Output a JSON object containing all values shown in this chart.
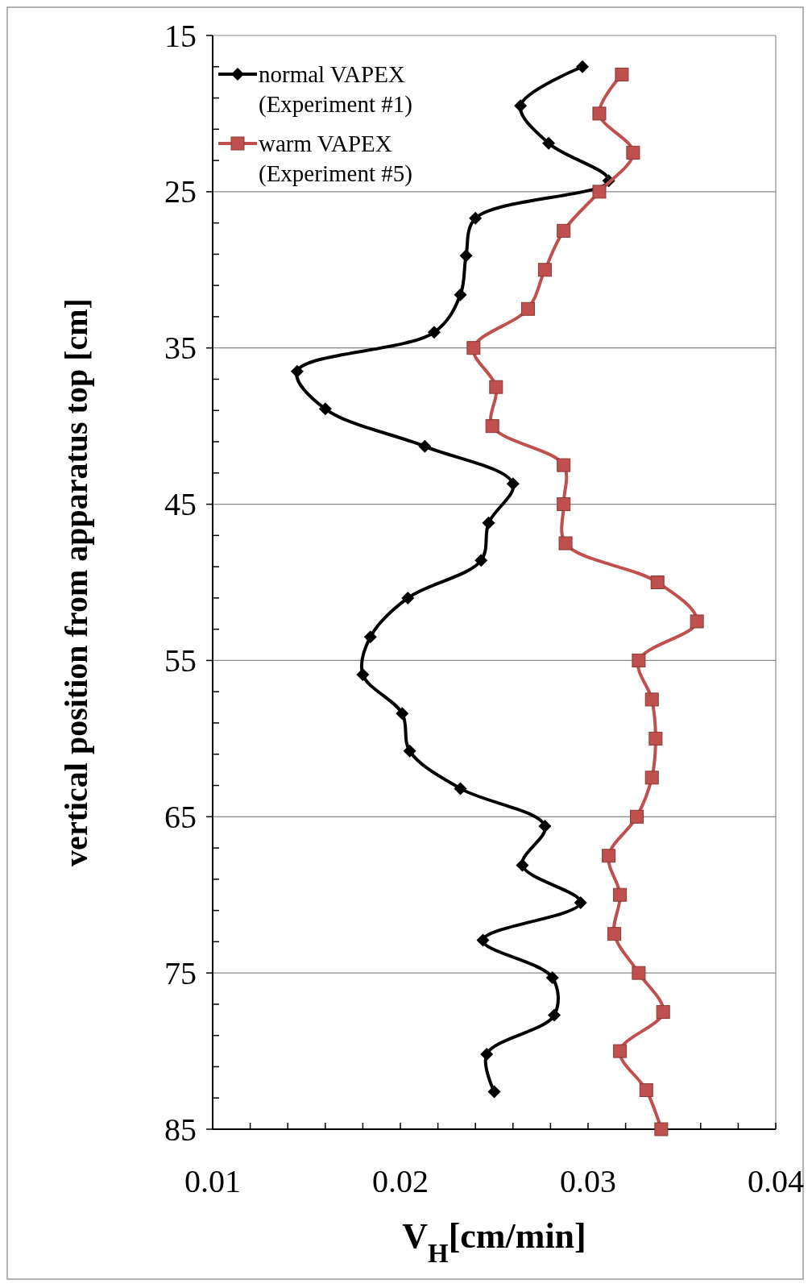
{
  "chart_data": {
    "type": "line",
    "xlabel": "V$_{H}$[cm/min]",
    "ylabel": "vertical position from apparatus top [cm]",
    "xlim": [
      0.01,
      0.04
    ],
    "xticks": [
      0.01,
      {
        "value": 0.012,
        "label": null
      },
      {
        "value": 0.014,
        "label": null
      },
      {
        "value": 0.016,
        "label": null
      },
      {
        "value": 0.018,
        "label": null
      },
      0.02,
      {
        "value": 0.022,
        "label": null
      },
      {
        "value": 0.024,
        "label": null
      },
      {
        "value": 0.026,
        "label": null
      },
      {
        "value": 0.028,
        "label": null
      },
      0.03,
      {
        "value": 0.032,
        "label": null
      },
      {
        "value": 0.034,
        "label": null
      },
      {
        "value": 0.036,
        "label": null
      },
      {
        "value": 0.038,
        "label": null
      },
      0.04
    ],
    "ylim": [
      85,
      15
    ],
    "yticks": [
      15,
      {
        "value": 17,
        "label": null
      },
      {
        "value": 19,
        "label": null
      },
      {
        "value": 21,
        "label": null
      },
      {
        "value": 23,
        "label": null
      },
      25,
      {
        "value": 27,
        "label": null
      },
      {
        "value": 29,
        "label": null
      },
      {
        "value": 31,
        "label": null
      },
      {
        "value": 33,
        "label": null
      },
      35,
      {
        "value": 37,
        "label": null
      },
      {
        "value": 39,
        "label": null
      },
      {
        "value": 41,
        "label": null
      },
      {
        "value": 43,
        "label": null
      },
      45,
      {
        "value": 47,
        "label": null
      },
      {
        "value": 49,
        "label": null
      },
      {
        "value": 51,
        "label": null
      },
      {
        "value": 53,
        "label": null
      },
      55,
      {
        "value": 57,
        "label": null
      },
      {
        "value": 59,
        "label": null
      },
      {
        "value": 61,
        "label": null
      },
      {
        "value": 63,
        "label": null
      },
      65,
      {
        "value": 67,
        "label": null
      },
      {
        "value": 69,
        "label": null
      },
      {
        "value": 71,
        "label": null
      },
      {
        "value": 73,
        "label": null
      },
      75,
      {
        "value": 77,
        "label": null
      },
      {
        "value": 79,
        "label": null
      },
      {
        "value": 81,
        "label": null
      },
      {
        "value": 83,
        "label": null
      },
      85
    ],
    "grid": "y",
    "legend": "top left",
    "line_style": "solid",
    "series": [
      {
        "name": "normal VAPEX\n(Experiment #1)",
        "color": "#000000",
        "marker": "diamond",
        "x": [
          0.0297,
          0.0264,
          0.0279,
          0.0311,
          0.024,
          0.0235,
          0.0232,
          0.0218,
          0.0145,
          0.016,
          0.0213,
          0.026,
          0.0247,
          0.0243,
          0.0204,
          0.0184,
          0.018,
          0.0201,
          0.0205,
          0.0232,
          0.0277,
          0.0265,
          0.0296,
          0.0244,
          0.0281,
          0.0282,
          0.0246,
          0.025
        ],
        "values": [
          17.0,
          19.5,
          21.9,
          24.3,
          26.7,
          29.1,
          31.6,
          34.0,
          36.5,
          38.9,
          41.3,
          43.7,
          46.2,
          48.6,
          51.0,
          53.5,
          55.9,
          58.4,
          60.8,
          63.2,
          65.6,
          68.1,
          70.5,
          72.9,
          75.3,
          77.7,
          80.2,
          82.6
        ]
      },
      {
        "name": "warm VAPEX\n(Experiment #5)",
        "color": "#c0504d",
        "marker": "square",
        "x": [
          0.0318,
          0.0306,
          0.0324,
          0.0306,
          0.0287,
          0.0277,
          0.0268,
          0.0239,
          0.0251,
          0.0249,
          0.0287,
          0.0287,
          0.0288,
          0.0337,
          0.0358,
          0.0327,
          0.0334,
          0.0336,
          0.0334,
          0.0326,
          0.0311,
          0.0317,
          0.0314,
          0.0327,
          0.034,
          0.0317,
          0.0331,
          0.0339
        ],
        "values": [
          17.5,
          20,
          22.5,
          25,
          27.5,
          30,
          32.5,
          35,
          37.5,
          40,
          42.5,
          45,
          47.5,
          50,
          52.5,
          55,
          57.5,
          60,
          62.5,
          65,
          67.5,
          70,
          72.5,
          75,
          77.5,
          80,
          82.5,
          85
        ]
      }
    ]
  }
}
